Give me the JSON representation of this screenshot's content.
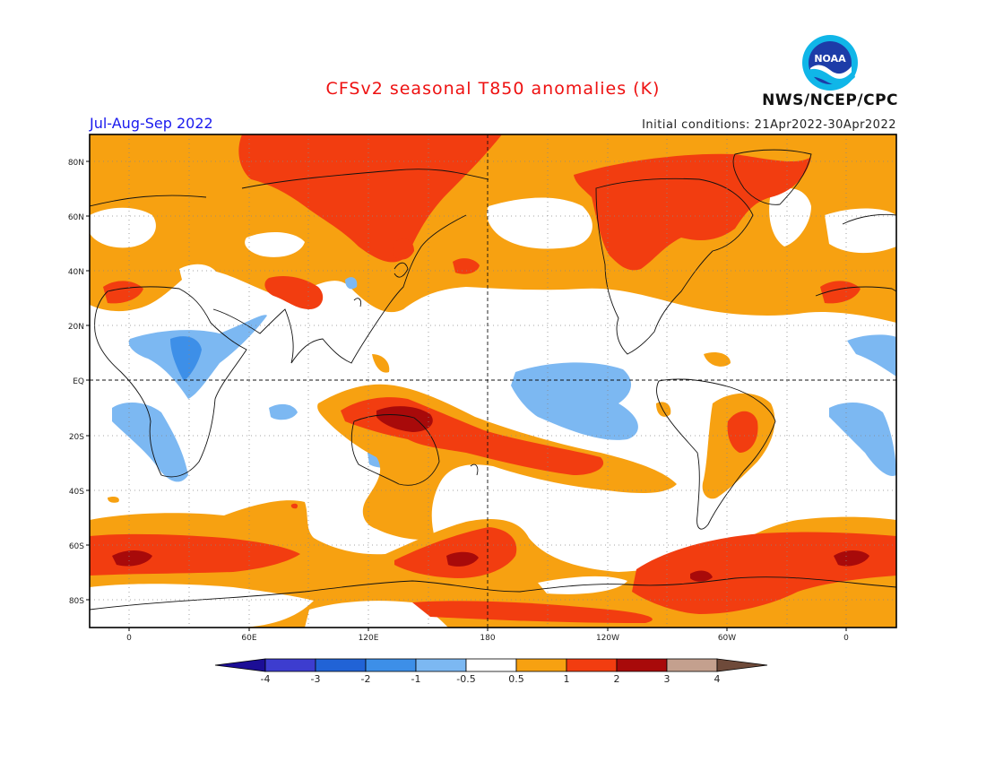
{
  "header": {
    "title": "CFSv2 seasonal T850 anomalies (K)",
    "season": "Jul-Aug-Sep 2022",
    "initial_conditions": "Initial conditions: 21Apr2022-30Apr2022",
    "organization": "NWS/NCEP/CPC",
    "logo_text": "NOAA"
  },
  "axes": {
    "lat_labels": [
      "80N",
      "60N",
      "40N",
      "20N",
      "EQ",
      "20S",
      "40S",
      "60S",
      "80S"
    ],
    "lon_labels": [
      "0",
      "60E",
      "120E",
      "180",
      "120W",
      "60W",
      "0"
    ]
  },
  "colorbar": {
    "labels": [
      "-4",
      "-3",
      "-2",
      "-1",
      "-0.5",
      "0.5",
      "1",
      "2",
      "3",
      "4"
    ],
    "colors": [
      "#1c0e96",
      "#3d3dcf",
      "#2163d6",
      "#3d8fe8",
      "#7cb8f2",
      "#ffffff",
      "#f7a111",
      "#f23d10",
      "#a80a0a",
      "#c4a08e",
      "#6e4a3a"
    ]
  },
  "colors": {
    "title": "#ee1111",
    "season": "#1a1aee",
    "anomaly_0_5_to_1": "#f7a111",
    "anomaly_1_to_2": "#f23d10",
    "anomaly_2_to_3": "#a80a0a",
    "anomaly_neg_0_5_to_neg_1": "#7cb8f2",
    "anomaly_neg_1_to_neg_2": "#3d8fe8"
  }
}
